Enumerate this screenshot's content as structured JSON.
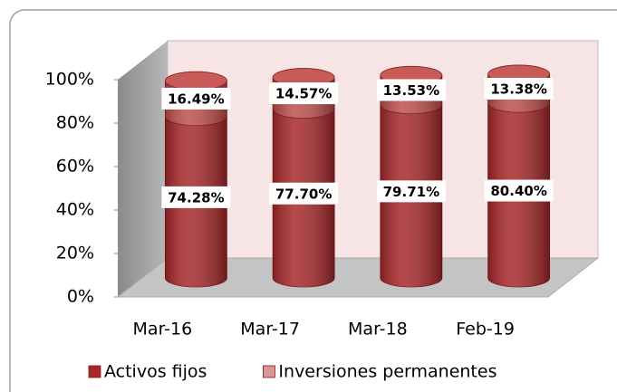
{
  "chart_data": {
    "type": "bar3d_stacked",
    "categories": [
      "Mar-16",
      "Mar-17",
      "Mar-18",
      "Feb-19"
    ],
    "series": [
      {
        "name": "Activos fijos",
        "color": "#a8282a",
        "values": [
          74.28,
          77.7,
          79.71,
          80.4
        ],
        "value_labels": [
          "74.28%",
          "77.70%",
          "79.71%",
          "80.40%"
        ]
      },
      {
        "name": "Inversiones permanentes",
        "color": "#c0504d",
        "values": [
          16.49,
          14.57,
          13.53,
          13.38
        ],
        "value_labels": [
          "16.49%",
          "14.57%",
          "13.53%",
          "13.38%"
        ]
      }
    ],
    "ylim": [
      0,
      100
    ],
    "yticks": [
      {
        "value": 0,
        "label": "0%"
      },
      {
        "value": 20,
        "label": "20%"
      },
      {
        "value": 40,
        "label": "40%"
      },
      {
        "value": 60,
        "label": "60%"
      },
      {
        "value": 80,
        "label": "80%"
      },
      {
        "value": 100,
        "label": "100%"
      }
    ],
    "legend": "bottom"
  }
}
